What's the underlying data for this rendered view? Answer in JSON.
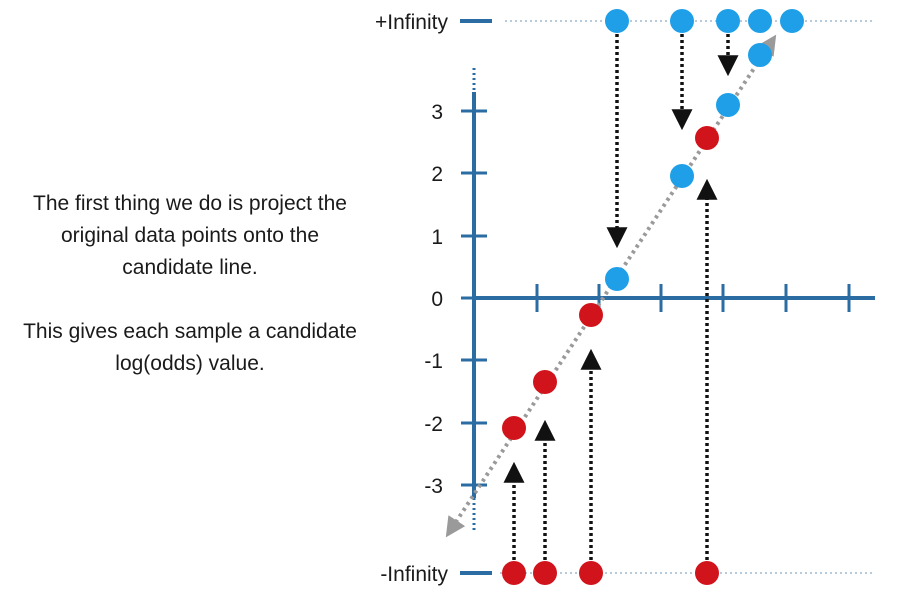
{
  "colors": {
    "axis": "#2b6ca3",
    "blue": "#1e9fe8",
    "red": "#d1131b",
    "arrow": "#111111",
    "line": "#9a9a9a"
  },
  "text": {
    "para1": "The first thing we do is project the original data points onto the candidate line.",
    "para2": "This gives each sample a candidate log(odds) value."
  },
  "labels": {
    "pos_inf": "+Infinity",
    "neg_inf": "-Infinity"
  },
  "y_ticks": [
    "3",
    "2",
    "1",
    "0",
    "-1",
    "-2",
    "-3"
  ],
  "points": {
    "blue_projected": [
      "blue-1",
      "blue-2",
      "blue-3",
      "blue-4"
    ],
    "red_projected": [
      "red-1",
      "red-2",
      "red-3",
      "red-4"
    ]
  }
}
